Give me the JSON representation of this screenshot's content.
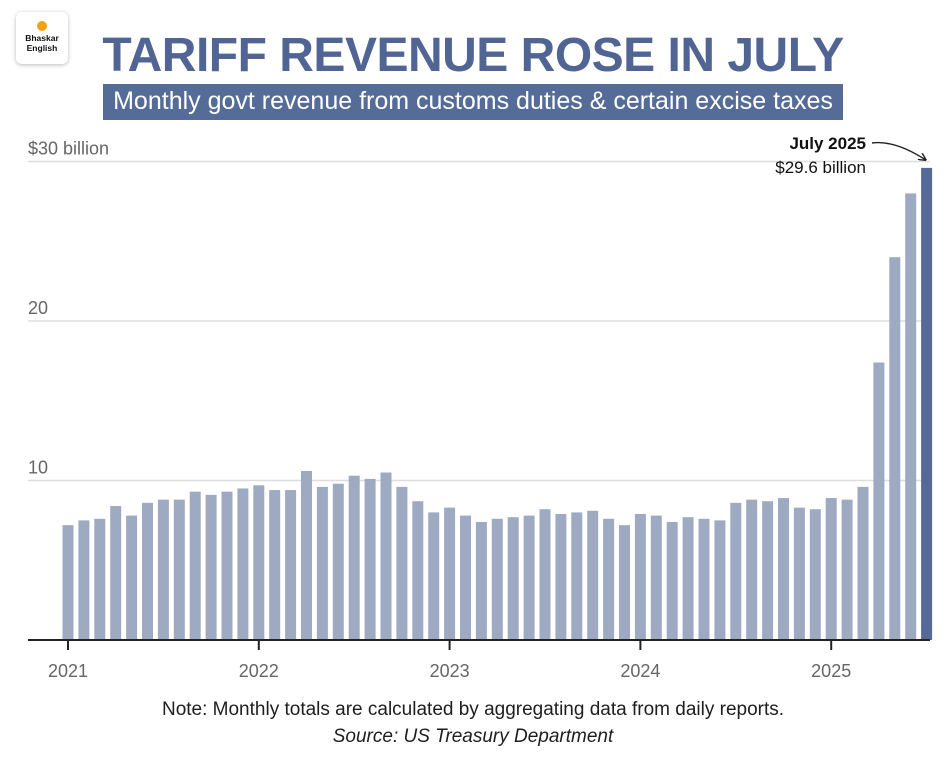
{
  "logo": {
    "line1": "Bhaskar",
    "line2": "English"
  },
  "header": {
    "title": "TARIFF REVENUE ROSE IN JULY",
    "subtitle": "Monthly govt revenue from customs duties & certain excise taxes"
  },
  "footer": {
    "note": "Note: Monthly totals are calculated by aggregating data from daily reports.",
    "source_prefix": "Source",
    "source_text": ": US Treasury Department"
  },
  "colors": {
    "bar": "#9eaac2",
    "highlight_bar": "#576a96",
    "title": "#516594",
    "gridline": "#dddddd",
    "axis": "#222222",
    "tick_label": "#666666"
  },
  "chart_data": {
    "type": "bar",
    "title": "TARIFF REVENUE ROSE IN JULY",
    "subtitle": "Monthly govt revenue from customs duties & certain excise taxes",
    "y_ticks": [
      {
        "value": 10,
        "label": "10"
      },
      {
        "value": 20,
        "label": "20"
      },
      {
        "value": 30,
        "label": "$30 billion"
      }
    ],
    "ylim": [
      0,
      30
    ],
    "grid": true,
    "x_ticks": [
      "2021",
      "2022",
      "2023",
      "2024",
      "2025"
    ],
    "x_tick_month_index": [
      0,
      12,
      24,
      36,
      48
    ],
    "categories": [
      "2021-01",
      "2021-02",
      "2021-03",
      "2021-04",
      "2021-05",
      "2021-06",
      "2021-07",
      "2021-08",
      "2021-09",
      "2021-10",
      "2021-11",
      "2021-12",
      "2022-01",
      "2022-02",
      "2022-03",
      "2022-04",
      "2022-05",
      "2022-06",
      "2022-07",
      "2022-08",
      "2022-09",
      "2022-10",
      "2022-11",
      "2022-12",
      "2023-01",
      "2023-02",
      "2023-03",
      "2023-04",
      "2023-05",
      "2023-06",
      "2023-07",
      "2023-08",
      "2023-09",
      "2023-10",
      "2023-11",
      "2023-12",
      "2024-01",
      "2024-02",
      "2024-03",
      "2024-04",
      "2024-05",
      "2024-06",
      "2024-07",
      "2024-08",
      "2024-09",
      "2024-10",
      "2024-11",
      "2024-12",
      "2025-01",
      "2025-02",
      "2025-03",
      "2025-04",
      "2025-05",
      "2025-06",
      "2025-07"
    ],
    "values": [
      7.2,
      7.5,
      7.6,
      8.4,
      7.8,
      8.6,
      8.8,
      8.8,
      9.3,
      9.1,
      9.3,
      9.5,
      9.7,
      9.4,
      9.4,
      10.6,
      9.6,
      9.8,
      10.3,
      10.1,
      10.5,
      9.6,
      8.7,
      8.0,
      8.3,
      7.8,
      7.4,
      7.6,
      7.7,
      7.8,
      8.2,
      7.9,
      8.0,
      8.1,
      7.6,
      7.2,
      7.9,
      7.8,
      7.4,
      7.7,
      7.6,
      7.5,
      8.6,
      8.8,
      8.7,
      8.9,
      8.3,
      8.2,
      8.9,
      8.8,
      9.6,
      17.4,
      24.0,
      28.0,
      29.6
    ],
    "highlight_index": 54,
    "annotation": {
      "label": "July 2025",
      "value_text": "$29.6 billion"
    }
  }
}
